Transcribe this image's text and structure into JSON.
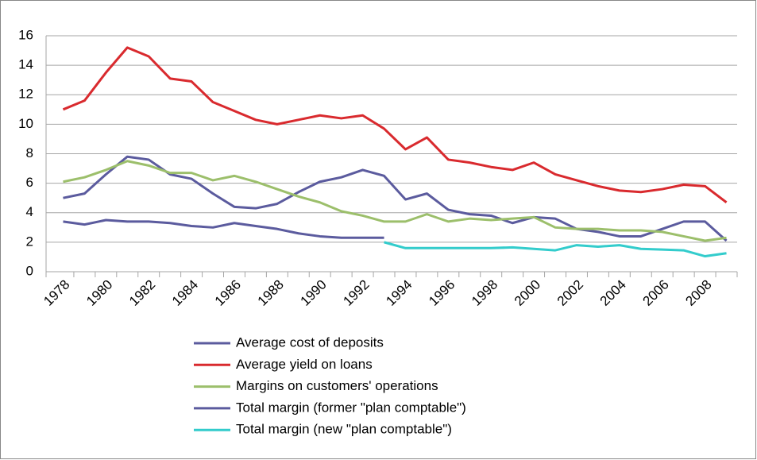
{
  "chart_data": {
    "type": "line",
    "categories": [
      "1978",
      null,
      "1980",
      null,
      "1982",
      null,
      "1984",
      null,
      "1986",
      null,
      "1988",
      null,
      "1990",
      null,
      "1992",
      null,
      "1994",
      null,
      "1996",
      null,
      "1998",
      null,
      "2000",
      null,
      "2002",
      null,
      "2004",
      null,
      "2006",
      null,
      "2008",
      null
    ],
    "series": [
      {
        "name": "Average cost of deposits",
        "color": "#5b5b9e",
        "values": [
          5.0,
          5.3,
          6.6,
          7.8,
          7.6,
          6.6,
          6.3,
          5.3,
          4.4,
          4.3,
          4.6,
          5.4,
          6.1,
          6.4,
          6.9,
          6.5,
          4.9,
          5.3,
          4.2,
          3.9,
          3.8,
          3.3,
          3.7,
          3.6,
          2.9,
          2.7,
          2.4,
          2.4,
          2.9,
          3.4,
          3.4,
          2.1
        ]
      },
      {
        "name": "Average yield on loans",
        "color": "#d92a2e",
        "values": [
          11.0,
          11.6,
          13.5,
          15.2,
          14.6,
          13.1,
          12.9,
          11.5,
          10.9,
          10.3,
          10.0,
          10.3,
          10.6,
          10.4,
          10.6,
          9.7,
          8.3,
          9.1,
          7.6,
          7.4,
          7.1,
          6.9,
          7.4,
          6.6,
          6.2,
          5.8,
          5.5,
          5.4,
          5.6,
          5.9,
          5.8,
          4.7
        ]
      },
      {
        "name": "Margins on customers' operations",
        "color": "#9cbf6b",
        "values": [
          6.1,
          6.4,
          6.9,
          7.5,
          7.2,
          6.7,
          6.7,
          6.2,
          6.5,
          6.1,
          5.6,
          5.1,
          4.7,
          4.1,
          3.8,
          3.4,
          3.4,
          3.9,
          3.4,
          3.6,
          3.5,
          3.6,
          3.7,
          3.0,
          2.9,
          2.9,
          2.8,
          2.8,
          2.7,
          2.4,
          2.1,
          2.3
        ]
      },
      {
        "name": "Total margin (former \"plan comptable\")",
        "color": "#5b5b9e",
        "values": [
          3.4,
          3.2,
          3.5,
          3.4,
          3.4,
          3.3,
          3.1,
          3.0,
          3.3,
          3.1,
          2.9,
          2.6,
          2.4,
          2.3,
          2.3,
          2.3,
          null,
          null,
          null,
          null,
          null,
          null,
          null,
          null,
          null,
          null,
          null,
          null,
          null,
          null,
          null,
          null
        ]
      },
      {
        "name": "Total margin (new \"plan comptable\")",
        "color": "#33cccc",
        "values": [
          null,
          null,
          null,
          null,
          null,
          null,
          null,
          null,
          null,
          null,
          null,
          null,
          null,
          null,
          null,
          2.0,
          1.6,
          1.6,
          1.6,
          1.6,
          1.6,
          1.65,
          1.55,
          1.45,
          1.8,
          1.7,
          1.8,
          1.55,
          1.5,
          1.45,
          1.05,
          1.25
        ]
      }
    ],
    "ylim": [
      0,
      16
    ],
    "yticks": [
      0,
      2,
      4,
      6,
      8,
      10,
      12,
      14,
      16
    ],
    "grid": true,
    "legend": "bottom"
  }
}
